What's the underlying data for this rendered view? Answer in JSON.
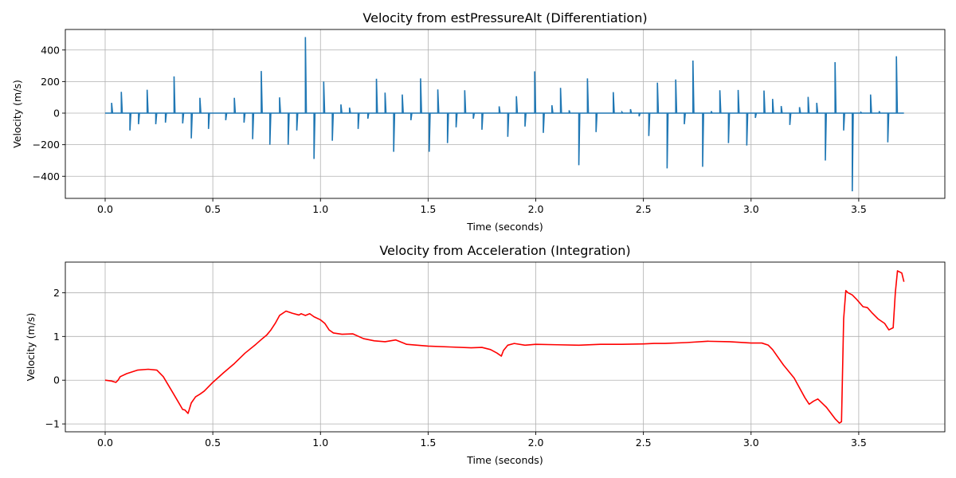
{
  "chart_data": [
    {
      "type": "line",
      "title": "Velocity from estPressureAlt (Differentiation)",
      "xlabel": "Time (seconds)",
      "ylabel": "Velocity (m/s)",
      "xlim": [
        -0.185,
        3.9
      ],
      "ylim": [
        -540,
        530
      ],
      "xticks": [
        0.0,
        0.5,
        1.0,
        1.5,
        2.0,
        2.5,
        3.0,
        3.5
      ],
      "xtick_labels": [
        "0.0",
        "0.5",
        "1.0",
        "1.5",
        "2.0",
        "2.5",
        "3.0",
        "3.5"
      ],
      "yticks": [
        -400,
        -200,
        0,
        200,
        400
      ],
      "ytick_labels": [
        "−400",
        "−200",
        "0",
        "200",
        "400"
      ],
      "grid": true,
      "series": [
        {
          "color": "#1f77b4",
          "style": "spikes",
          "x_start": 0.0,
          "x_end": 3.71,
          "baseline": 0,
          "spikes": [
            [
              0.03,
              65
            ],
            [
              0.075,
              135
            ],
            [
              0.115,
              -110
            ],
            [
              0.155,
              -70
            ],
            [
              0.195,
              148
            ],
            [
              0.235,
              -70
            ],
            [
              0.28,
              -60
            ],
            [
              0.32,
              233
            ],
            [
              0.36,
              -65
            ],
            [
              0.4,
              -160
            ],
            [
              0.44,
              97
            ],
            [
              0.48,
              -100
            ],
            [
              0.56,
              -45
            ],
            [
              0.6,
              97
            ],
            [
              0.645,
              -60
            ],
            [
              0.685,
              -165
            ],
            [
              0.725,
              267
            ],
            [
              0.765,
              -200
            ],
            [
              0.81,
              100
            ],
            [
              0.85,
              -200
            ],
            [
              0.89,
              -110
            ],
            [
              0.93,
              482
            ],
            [
              0.97,
              -290
            ],
            [
              1.015,
              200
            ],
            [
              1.055,
              -175
            ],
            [
              1.095,
              55
            ],
            [
              1.135,
              35
            ],
            [
              1.175,
              -100
            ],
            [
              1.22,
              -35
            ],
            [
              1.26,
              218
            ],
            [
              1.3,
              130
            ],
            [
              1.34,
              -245
            ],
            [
              1.38,
              118
            ],
            [
              1.42,
              -45
            ],
            [
              1.465,
              220
            ],
            [
              1.505,
              -245
            ],
            [
              1.545,
              150
            ],
            [
              1.59,
              -190
            ],
            [
              1.63,
              -90
            ],
            [
              1.67,
              145
            ],
            [
              1.71,
              -35
            ],
            [
              1.75,
              -105
            ],
            [
              1.83,
              43
            ],
            [
              1.87,
              -150
            ],
            [
              1.91,
              107
            ],
            [
              1.95,
              -85
            ],
            [
              1.995,
              265
            ],
            [
              2.035,
              -125
            ],
            [
              2.075,
              50
            ],
            [
              2.115,
              160
            ],
            [
              2.155,
              18
            ],
            [
              2.2,
              -330
            ],
            [
              2.24,
              220
            ],
            [
              2.28,
              -120
            ],
            [
              2.36,
              133
            ],
            [
              2.4,
              7
            ],
            [
              2.44,
              25
            ],
            [
              2.48,
              -20
            ],
            [
              2.525,
              -145
            ],
            [
              2.565,
              193
            ],
            [
              2.61,
              -350
            ],
            [
              2.65,
              213
            ],
            [
              2.69,
              -70
            ],
            [
              2.73,
              333
            ],
            [
              2.775,
              -340
            ],
            [
              2.815,
              12
            ],
            [
              2.855,
              145
            ],
            [
              2.895,
              -190
            ],
            [
              2.94,
              147
            ],
            [
              2.98,
              -205
            ],
            [
              3.02,
              -30
            ],
            [
              3.06,
              143
            ],
            [
              3.1,
              90
            ],
            [
              3.14,
              45
            ],
            [
              3.18,
              -75
            ],
            [
              3.225,
              38
            ],
            [
              3.265,
              103
            ],
            [
              3.305,
              65
            ],
            [
              3.345,
              -300
            ],
            [
              3.39,
              323
            ],
            [
              3.43,
              -110
            ],
            [
              3.47,
              -495
            ],
            [
              3.51,
              5
            ],
            [
              3.555,
              118
            ],
            [
              3.595,
              12
            ],
            [
              3.635,
              -185
            ],
            [
              3.675,
              360
            ]
          ]
        }
      ]
    },
    {
      "type": "line",
      "title": "Velocity from Acceleration (Integration)",
      "xlabel": "Time (seconds)",
      "ylabel": "Velocity (m/s)",
      "xlim": [
        -0.185,
        3.9
      ],
      "ylim": [
        -1.18,
        2.7
      ],
      "xticks": [
        0.0,
        0.5,
        1.0,
        1.5,
        2.0,
        2.5,
        3.0,
        3.5
      ],
      "xtick_labels": [
        "0.0",
        "0.5",
        "1.0",
        "1.5",
        "2.0",
        "2.5",
        "3.0",
        "3.5"
      ],
      "yticks": [
        -1,
        0,
        1,
        2
      ],
      "ytick_labels": [
        "−1",
        "0",
        "1",
        "2"
      ],
      "grid": true,
      "series": [
        {
          "color": "#ff0000",
          "x": [
            0.0,
            0.03,
            0.05,
            0.06,
            0.07,
            0.1,
            0.15,
            0.2,
            0.24,
            0.27,
            0.31,
            0.34,
            0.36,
            0.37,
            0.385,
            0.4,
            0.42,
            0.44,
            0.46,
            0.5,
            0.55,
            0.6,
            0.65,
            0.7,
            0.73,
            0.75,
            0.77,
            0.79,
            0.81,
            0.84,
            0.87,
            0.9,
            0.91,
            0.93,
            0.95,
            0.97,
            1.0,
            1.02,
            1.04,
            1.06,
            1.1,
            1.15,
            1.2,
            1.25,
            1.3,
            1.35,
            1.4,
            1.45,
            1.5,
            1.6,
            1.7,
            1.75,
            1.79,
            1.82,
            1.84,
            1.85,
            1.87,
            1.9,
            1.95,
            2.0,
            2.1,
            2.2,
            2.3,
            2.4,
            2.5,
            2.55,
            2.6,
            2.7,
            2.8,
            2.9,
            3.0,
            3.05,
            3.08,
            3.1,
            3.15,
            3.2,
            3.25,
            3.27,
            3.29,
            3.31,
            3.35,
            3.39,
            3.41,
            3.42,
            3.43,
            3.44,
            3.45,
            3.47,
            3.49,
            3.52,
            3.54,
            3.56,
            3.59,
            3.62,
            3.64,
            3.66,
            3.67,
            3.68,
            3.7,
            3.71
          ],
          "y": [
            0.0,
            -0.02,
            -0.05,
            0.0,
            0.08,
            0.15,
            0.23,
            0.25,
            0.23,
            0.08,
            -0.25,
            -0.5,
            -0.67,
            -0.68,
            -0.76,
            -0.52,
            -0.38,
            -0.32,
            -0.25,
            -0.05,
            0.17,
            0.38,
            0.62,
            0.82,
            0.95,
            1.03,
            1.15,
            1.3,
            1.48,
            1.58,
            1.53,
            1.49,
            1.52,
            1.48,
            1.52,
            1.45,
            1.38,
            1.3,
            1.15,
            1.08,
            1.05,
            1.06,
            0.95,
            0.9,
            0.88,
            0.92,
            0.82,
            0.8,
            0.78,
            0.76,
            0.74,
            0.75,
            0.7,
            0.62,
            0.55,
            0.68,
            0.8,
            0.84,
            0.8,
            0.82,
            0.81,
            0.8,
            0.82,
            0.82,
            0.83,
            0.84,
            0.84,
            0.86,
            0.89,
            0.88,
            0.85,
            0.85,
            0.8,
            0.7,
            0.35,
            0.05,
            -0.4,
            -0.55,
            -0.48,
            -0.43,
            -0.62,
            -0.88,
            -0.98,
            -0.95,
            1.4,
            2.05,
            2.0,
            1.95,
            1.85,
            1.68,
            1.66,
            1.55,
            1.4,
            1.3,
            1.15,
            1.2,
            2.0,
            2.5,
            2.45,
            2.25
          ]
        }
      ]
    }
  ]
}
